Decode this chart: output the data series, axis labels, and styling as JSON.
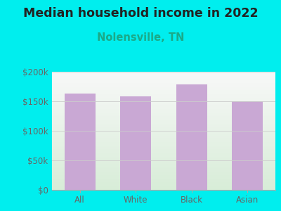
{
  "title": "Median household income in 2022",
  "subtitle": "Nolensville, TN",
  "categories": [
    "All",
    "White",
    "Black",
    "Asian"
  ],
  "values": [
    163000,
    158000,
    178000,
    150000
  ],
  "bar_color": "#c9a8d4",
  "background_color": "#00EEEE",
  "plot_bg_color_bottom": "#d8edd8",
  "plot_bg_color_top": "#f8f8f8",
  "ylim": [
    0,
    200000
  ],
  "yticks": [
    0,
    50000,
    100000,
    150000,
    200000
  ],
  "ytick_labels": [
    "$0",
    "$50k",
    "$100k",
    "$150k",
    "$200k"
  ],
  "title_fontsize": 12.5,
  "subtitle_fontsize": 10.5,
  "tick_label_fontsize": 8.5,
  "title_color": "#222222",
  "subtitle_color": "#1aaa88",
  "tick_color": "#666666"
}
